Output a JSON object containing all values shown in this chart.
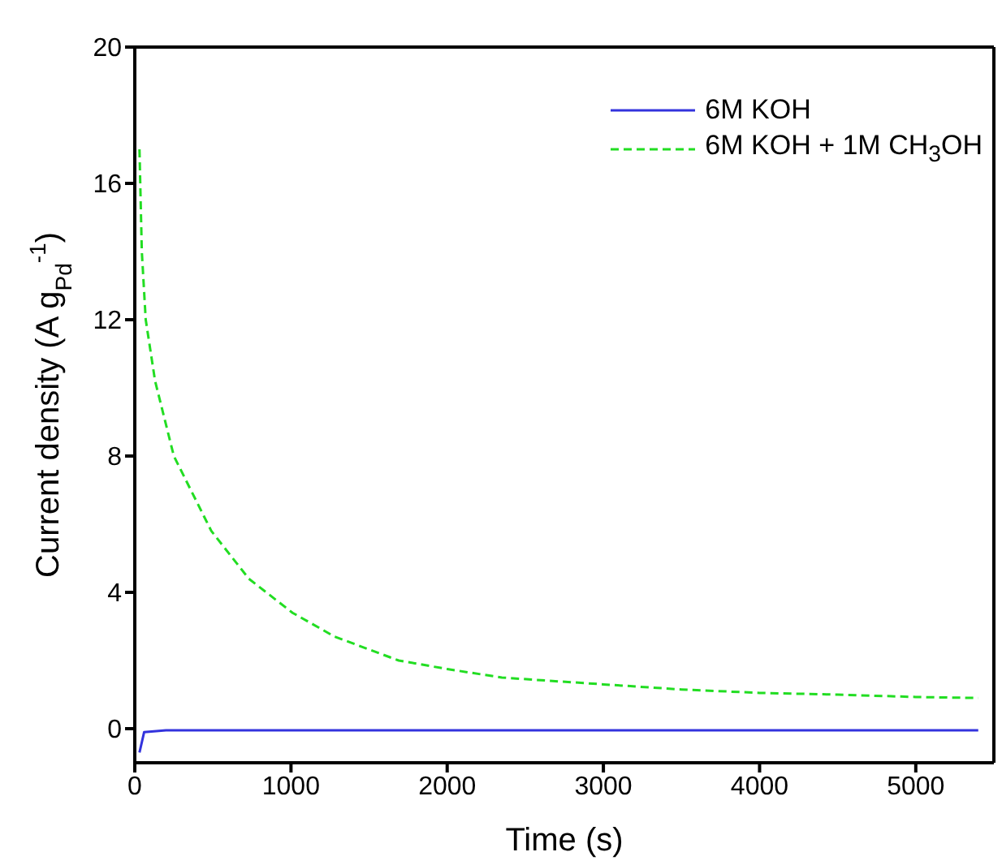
{
  "chart_data": {
    "type": "line",
    "xlabel": "Time (s)",
    "ylabel": "Current density (A g$_{Pd}$$^{-1}$)",
    "xlim": [
      0,
      5500
    ],
    "xticks": [
      0,
      1000,
      2000,
      3000,
      4000,
      5000
    ],
    "ylim": [
      -1,
      20
    ],
    "yticks": [
      0,
      4,
      8,
      12,
      16,
      20
    ],
    "grid": false,
    "legend": "top right",
    "marker": "none",
    "series": [
      {
        "name": "6M KOH",
        "color": "#3333dd",
        "line_style": "solid",
        "x": [
          30,
          60,
          200,
          1000,
          2000,
          3000,
          4000,
          5000,
          5400
        ],
        "values": [
          -0.7,
          -0.1,
          -0.05,
          -0.05,
          -0.05,
          -0.05,
          -0.05,
          -0.05,
          -0.05
        ]
      },
      {
        "name": "6M KOH + 1M CH$_{3}$OH",
        "color": "#22dd22",
        "line_style": "dashed",
        "x": [
          30,
          45,
          70,
          130,
          250,
          490,
          730,
          1010,
          1280,
          1690,
          2000,
          2350,
          3000,
          3500,
          4000,
          4500,
          5000,
          5400
        ],
        "values": [
          17.0,
          14.0,
          12.0,
          10.2,
          8.0,
          5.8,
          4.4,
          3.4,
          2.7,
          2.0,
          1.75,
          1.5,
          1.3,
          1.15,
          1.05,
          1.0,
          0.93,
          0.9
        ]
      }
    ]
  }
}
